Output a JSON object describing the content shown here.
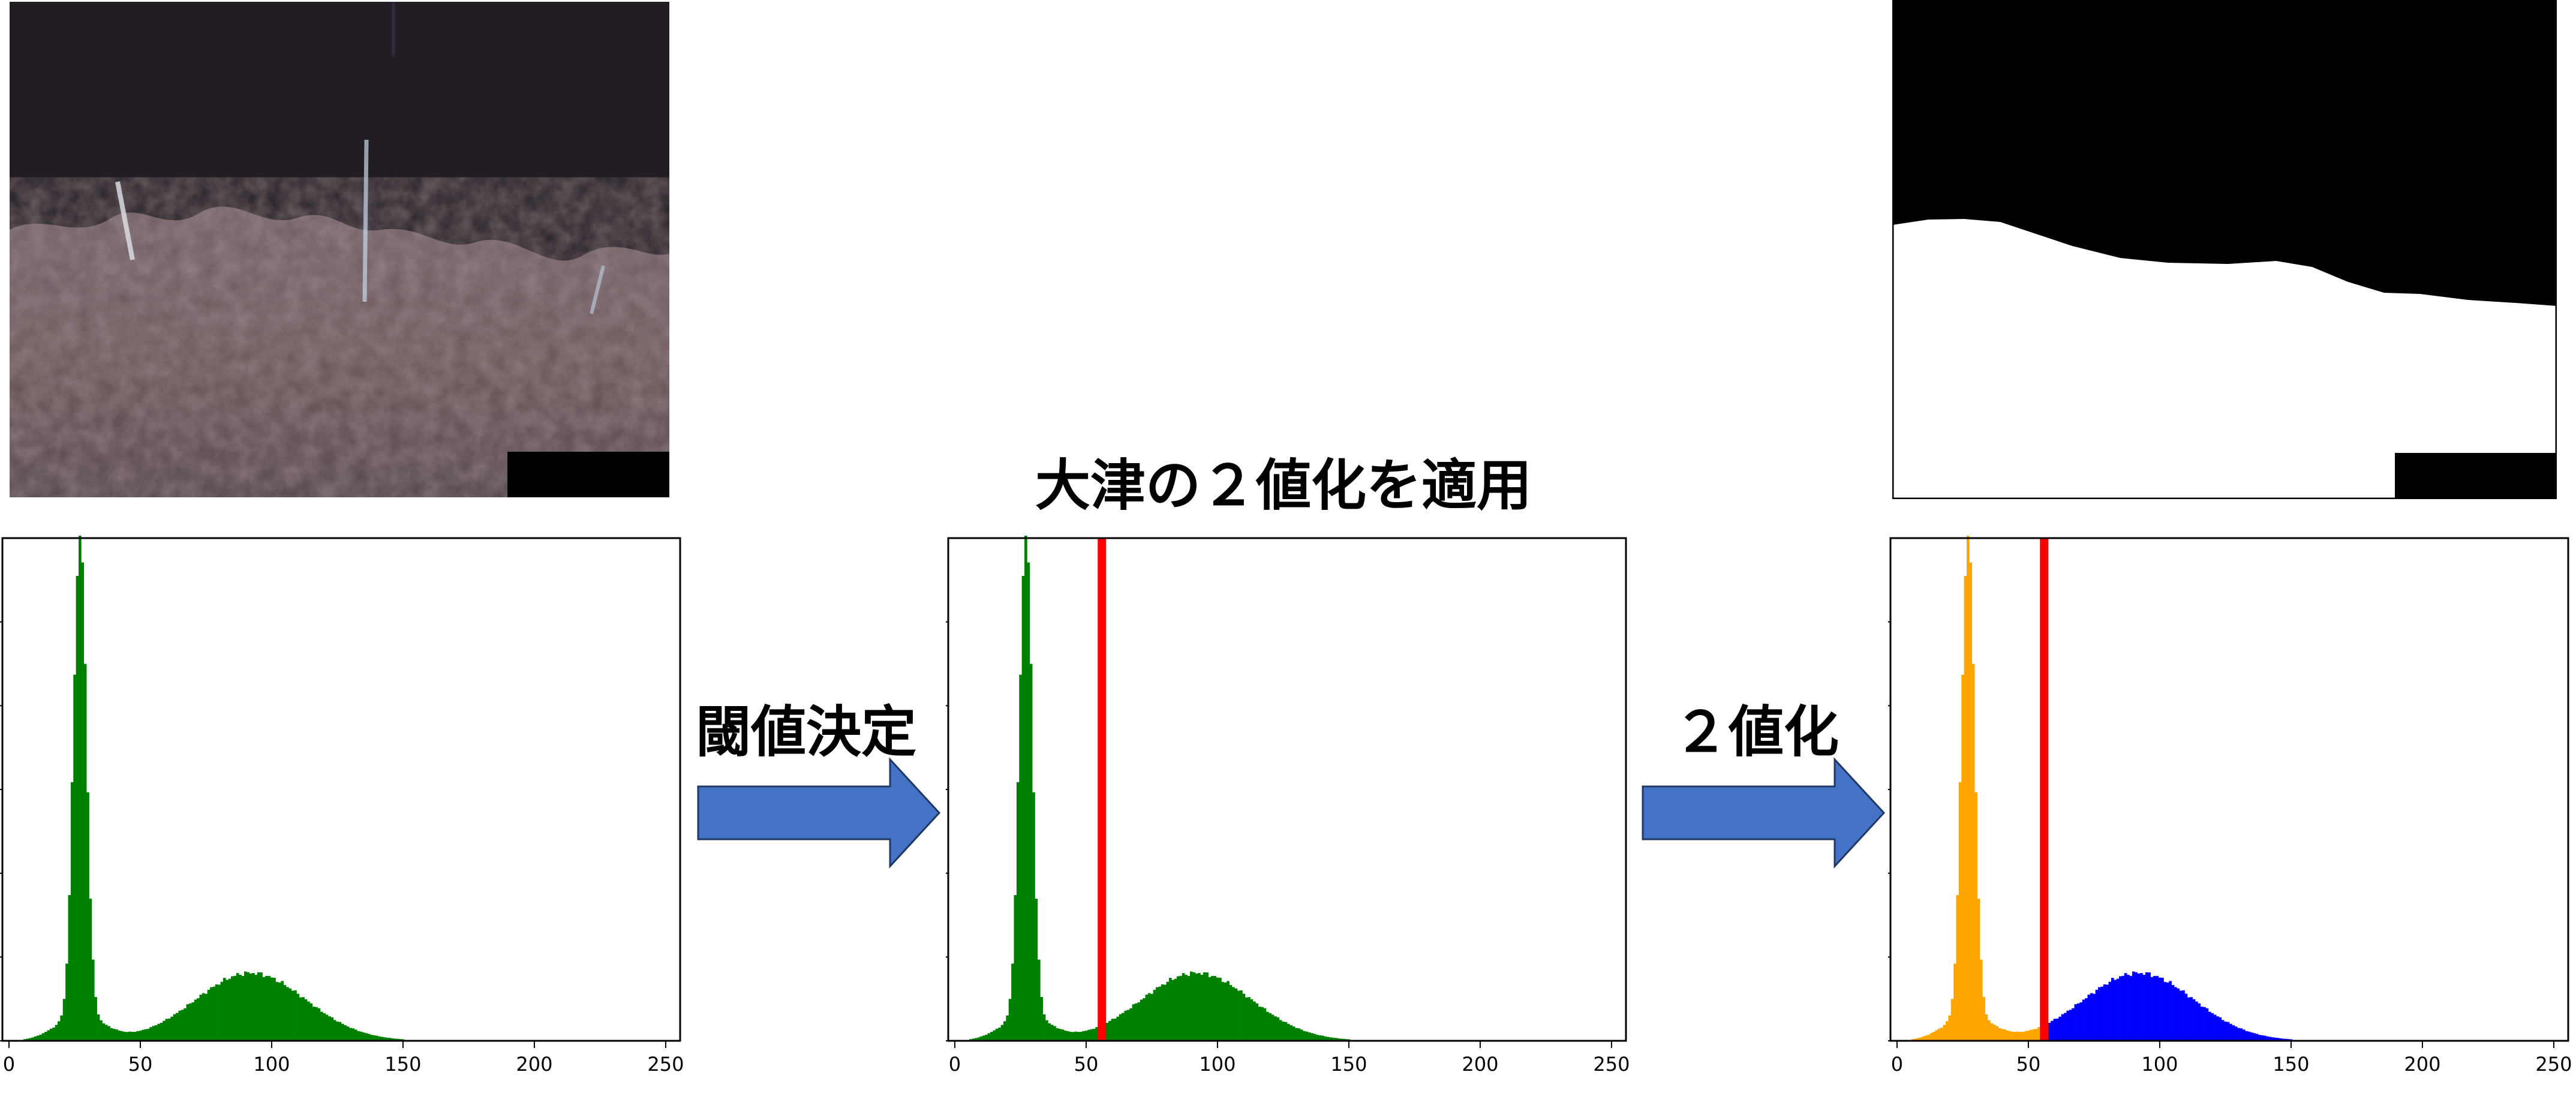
{
  "title": "大津の２値化を適用",
  "steps": {
    "threshold_label": "閾値決定",
    "binarize_label": "２値化"
  },
  "colors": {
    "hist_green": "#008000",
    "class_low": "#FFA500",
    "class_high": "#0000FF",
    "threshold_line": "#FF0000",
    "arrow_fill": "#4472C4",
    "arrow_stroke": "#1F3864"
  },
  "chart_data": [
    {
      "type": "bar",
      "name": "",
      "x_ticks": [
        0,
        50,
        100,
        150,
        200,
        250
      ],
      "xlim": [
        -2,
        256
      ],
      "ylim": [
        0,
        1
      ],
      "threshold": null,
      "color": "#008000",
      "distribution": [
        {
          "mu": 27,
          "sigma": 2.4,
          "amp": 0.98
        },
        {
          "mu": 27,
          "sigma": 9.0,
          "amp": 0.05
        },
        {
          "mu": 92,
          "sigma": 21,
          "amp": 0.135
        }
      ]
    },
    {
      "type": "bar",
      "name": "",
      "x_ticks": [
        0,
        50,
        100,
        150,
        200,
        250
      ],
      "xlim": [
        -2,
        256
      ],
      "ylim": [
        0,
        1
      ],
      "threshold": 56,
      "color": "#008000",
      "distribution": [
        {
          "mu": 27,
          "sigma": 2.4,
          "amp": 0.98
        },
        {
          "mu": 27,
          "sigma": 9.0,
          "amp": 0.05
        },
        {
          "mu": 92,
          "sigma": 21,
          "amp": 0.135
        }
      ]
    },
    {
      "type": "bar",
      "name": "",
      "x_ticks": [
        0,
        50,
        100,
        150,
        200,
        250
      ],
      "xlim": [
        -2,
        256
      ],
      "ylim": [
        0,
        1
      ],
      "threshold": 56,
      "color_low": "#FFA500",
      "color_high": "#0000FF",
      "distribution": [
        {
          "mu": 27,
          "sigma": 2.4,
          "amp": 0.98
        },
        {
          "mu": 27,
          "sigma": 9.0,
          "amp": 0.05
        },
        {
          "mu": 92,
          "sigma": 21,
          "amp": 0.135
        }
      ]
    }
  ]
}
